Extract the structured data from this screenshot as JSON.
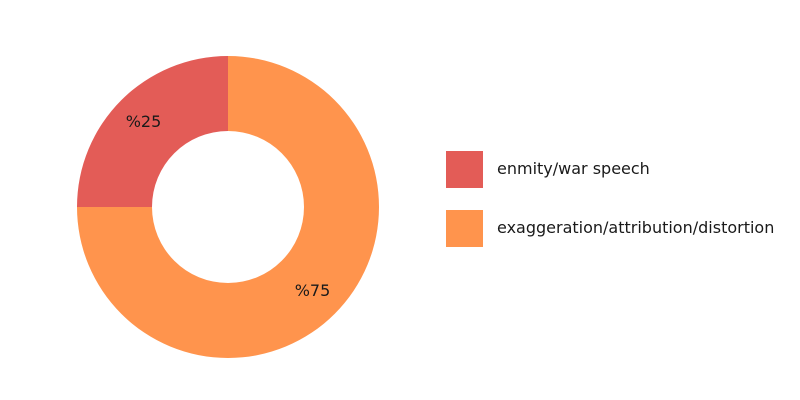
{
  "chart_data": {
    "type": "pie",
    "style": "donut",
    "categories": [
      "enmity/war speech",
      "exaggeration/attribution/distortion"
    ],
    "values": [
      25,
      75
    ],
    "value_labels": [
      "%25",
      "%75"
    ],
    "colors": [
      "#e35c57",
      "#ff944d"
    ],
    "legend_position": "right"
  }
}
